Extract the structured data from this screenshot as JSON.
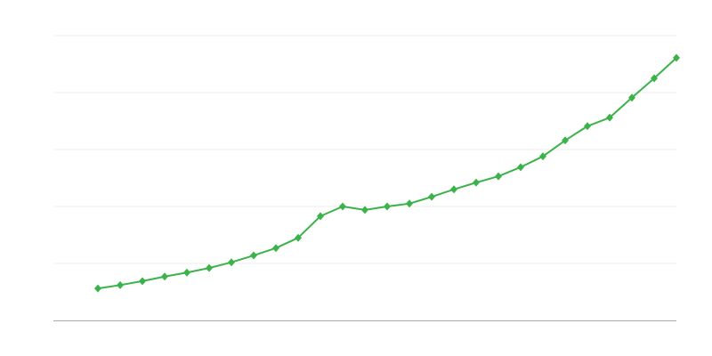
{
  "chart_data": {
    "type": "line",
    "title": "",
    "xlabel": "",
    "ylabel": "",
    "x": [
      1,
      2,
      3,
      4,
      5,
      6,
      7,
      8,
      9,
      10,
      11,
      12,
      13,
      14,
      15,
      16,
      17,
      18,
      19,
      20,
      21,
      22,
      23,
      24,
      25,
      26,
      27
    ],
    "series": [
      {
        "values": [
          0.56,
          0.62,
          0.69,
          0.77,
          0.84,
          0.92,
          1.02,
          1.14,
          1.27,
          1.45,
          1.83,
          2.0,
          1.94,
          2.0,
          2.05,
          2.17,
          2.3,
          2.42,
          2.53,
          2.69,
          2.88,
          3.16,
          3.41,
          3.56,
          3.91,
          4.25,
          4.61
        ],
        "color": "#3cb34a",
        "marker": "diamond"
      }
    ],
    "xlim": [
      -1,
      27
    ],
    "ylim": [
      0,
      5
    ],
    "grid": true,
    "legend": "none",
    "colors": {
      "grid": "#eeeeee",
      "axis": "#aaaaaa"
    }
  }
}
